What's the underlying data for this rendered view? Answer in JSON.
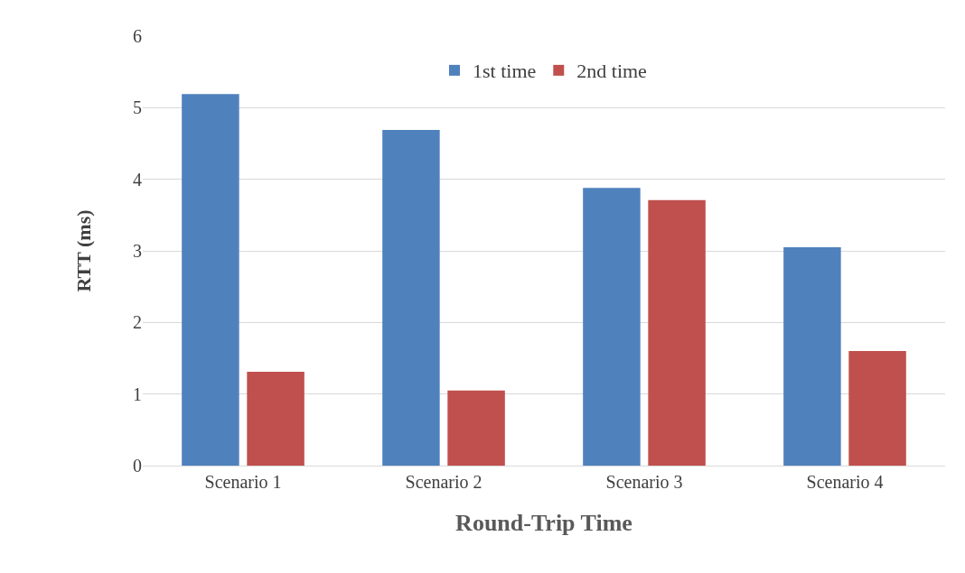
{
  "chart_data": {
    "type": "bar",
    "xlabel": "Round-Trip Time",
    "ylabel": "RTT (ms)",
    "categories": [
      "Scenario 1",
      "Scenario 2",
      "Scenario 3",
      "Scenario 4"
    ],
    "series": [
      {
        "name": "1st time",
        "color": "#4f81bd",
        "values": [
          5.19,
          4.69,
          3.88,
          3.05
        ]
      },
      {
        "name": "2nd time",
        "color": "#c0504d",
        "values": [
          1.31,
          1.05,
          3.71,
          1.6
        ]
      }
    ],
    "ylim": [
      0,
      6
    ],
    "yticks": [
      0,
      1,
      2,
      3,
      4,
      5,
      6
    ],
    "grid": "y",
    "legend": "top"
  }
}
